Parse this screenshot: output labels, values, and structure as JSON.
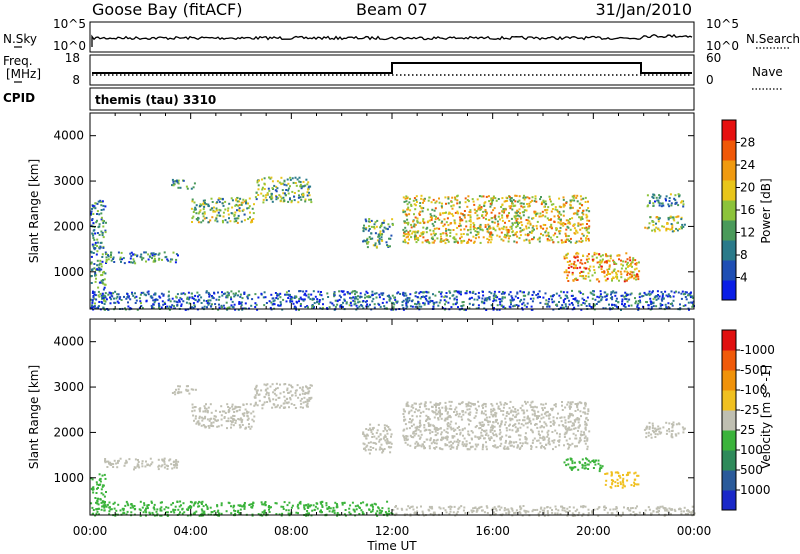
{
  "header": {
    "station": "Goose Bay (fitACF)",
    "beam": "Beam 07",
    "date": "31/Jan/2010"
  },
  "noise_panel": {
    "left_label": "N.Sky",
    "left_ticks": [
      "10^5",
      "10^0"
    ],
    "right_label": "N.Search",
    "right_ticks": [
      "10^5",
      "10^0"
    ]
  },
  "freq_panel": {
    "left_label_line1": "Freq.",
    "left_label_line2": "[MHz]",
    "left_ticks": [
      "18",
      "8"
    ],
    "right_label": "Nave",
    "right_ticks": [
      "60",
      "0"
    ]
  },
  "cpid_panel": {
    "left_label": "CPID",
    "program": "themis (tau) 3310"
  },
  "chart_data": [
    {
      "type": "heatmap",
      "name": "power",
      "ylabel": "Slant Range [km]",
      "xlabel": "Time UT",
      "xlim": [
        "00:00",
        "24:00"
      ],
      "ylim": [
        180,
        4500
      ],
      "x_ticks": [
        "00:00",
        "04:00",
        "08:00",
        "12:00",
        "16:00",
        "20:00",
        "00:00"
      ],
      "y_ticks": [
        "1000",
        "2000",
        "3000",
        "4000"
      ],
      "colorbar": {
        "label": "Power [dB]",
        "tick_labels": [
          "4",
          "8",
          "12",
          "16",
          "20",
          "24",
          "28"
        ],
        "colors": [
          "#0a1ee6",
          "#1f4fb4",
          "#2a7a8a",
          "#4a9a5a",
          "#8cc33a",
          "#e8c51a",
          "#f09a10",
          "#f05808",
          "#e61010"
        ]
      },
      "regions": [
        {
          "t0": 0.0,
          "t1": 0.6,
          "r0": 180,
          "r1": 2600,
          "v": 0.3
        },
        {
          "t0": 0.5,
          "t1": 3.5,
          "r0": 1200,
          "r1": 1450,
          "v": 0.3
        },
        {
          "t0": 4.0,
          "t1": 6.5,
          "r0": 2100,
          "r1": 2650,
          "v": 0.45
        },
        {
          "t0": 6.5,
          "t1": 8.8,
          "r0": 2550,
          "r1": 3100,
          "v": 0.4
        },
        {
          "t0": 3.2,
          "t1": 4.2,
          "r0": 2850,
          "r1": 3050,
          "v": 0.3
        },
        {
          "t0": 10.8,
          "t1": 12.0,
          "r0": 1550,
          "r1": 2200,
          "v": 0.4
        },
        {
          "t0": 12.4,
          "t1": 19.8,
          "r0": 1650,
          "r1": 2700,
          "v": 0.6
        },
        {
          "t0": 18.8,
          "t1": 21.8,
          "r0": 800,
          "r1": 1450,
          "v": 0.7
        },
        {
          "t0": 22.0,
          "t1": 23.6,
          "r0": 1900,
          "r1": 2250,
          "v": 0.5
        },
        {
          "t0": 22.0,
          "t1": 23.6,
          "r0": 2450,
          "r1": 2750,
          "v": 0.35
        },
        {
          "t0": 0.0,
          "t1": 24.0,
          "r0": 180,
          "r1": 600,
          "v": 0.2
        }
      ]
    },
    {
      "type": "heatmap",
      "name": "velocity",
      "ylabel": "Slant Range [km]",
      "xlabel": "Time UT",
      "xlim": [
        "00:00",
        "24:00"
      ],
      "ylim": [
        180,
        4500
      ],
      "x_ticks": [
        "00:00",
        "04:00",
        "08:00",
        "12:00",
        "16:00",
        "20:00",
        "00:00"
      ],
      "y_ticks": [
        "1000",
        "2000",
        "3000",
        "4000"
      ],
      "colorbar": {
        "label": "Velocity [m s^-1]",
        "tick_labels": [
          "1000",
          "500",
          "100",
          "25",
          "-25",
          "-100",
          "-500",
          "-1000"
        ],
        "colors": [
          "#1a28c8",
          "#2a5a9a",
          "#2e8a5a",
          "#3bb33b",
          "#bfbfb2",
          "#f0c020",
          "#f0920a",
          "#f05a0a",
          "#e01010"
        ]
      },
      "regions": [
        {
          "t0": 4.0,
          "t1": 6.5,
          "r0": 2100,
          "r1": 2650,
          "c": "#bfbfb2"
        },
        {
          "t0": 6.5,
          "t1": 8.8,
          "r0": 2550,
          "r1": 3100,
          "c": "#bfbfb2"
        },
        {
          "t0": 3.2,
          "t1": 4.2,
          "r0": 2850,
          "r1": 3050,
          "c": "#bfbfb2"
        },
        {
          "t0": 0.5,
          "t1": 3.5,
          "r0": 1200,
          "r1": 1450,
          "c": "#bfbfb2"
        },
        {
          "t0": 10.8,
          "t1": 12.0,
          "r0": 1550,
          "r1": 2200,
          "c": "#bfbfb2"
        },
        {
          "t0": 12.4,
          "t1": 19.8,
          "r0": 1650,
          "r1": 2700,
          "c": "#bfbfb2"
        },
        {
          "t0": 18.8,
          "t1": 20.4,
          "r0": 1150,
          "r1": 1450,
          "c": "#3bb33b"
        },
        {
          "t0": 20.4,
          "t1": 21.8,
          "r0": 800,
          "r1": 1150,
          "c": "#f0c020"
        },
        {
          "t0": 22.0,
          "t1": 23.6,
          "r0": 1900,
          "r1": 2250,
          "c": "#bfbfb2"
        },
        {
          "t0": 0.0,
          "t1": 0.6,
          "r0": 450,
          "r1": 1100,
          "c": "#3bb33b"
        },
        {
          "t0": 0.0,
          "t1": 12.0,
          "r0": 180,
          "r1": 500,
          "c": "#3bb33b"
        },
        {
          "t0": 12.0,
          "t1": 24.0,
          "r0": 180,
          "r1": 400,
          "c": "#bfbfb2"
        }
      ]
    }
  ]
}
